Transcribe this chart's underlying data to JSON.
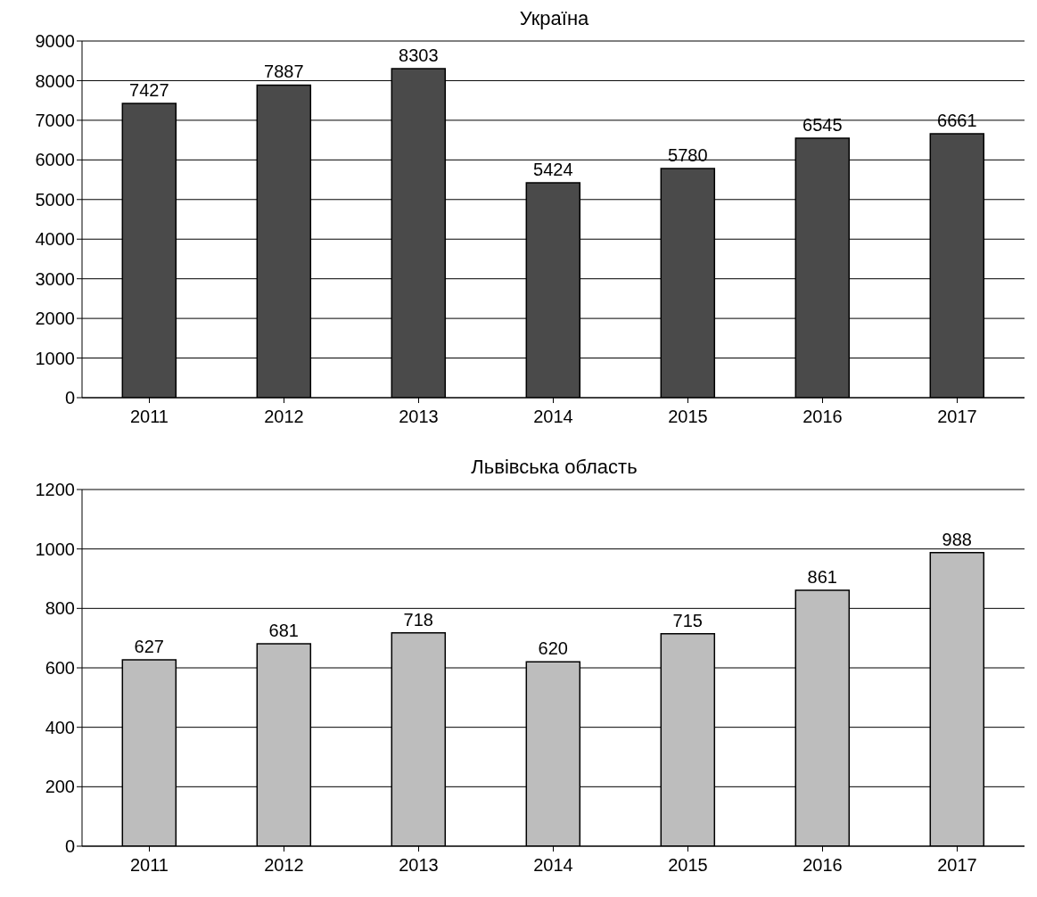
{
  "chart_data": [
    {
      "type": "bar",
      "title": "Україна",
      "categories": [
        "2011",
        "2012",
        "2013",
        "2014",
        "2015",
        "2016",
        "2017"
      ],
      "values": [
        7427,
        7887,
        8303,
        5424,
        5780,
        6545,
        6661
      ],
      "color": "#4a4a4a",
      "ylim": [
        0,
        9000
      ],
      "yticks": [
        0,
        1000,
        2000,
        3000,
        4000,
        5000,
        6000,
        7000,
        8000,
        9000
      ],
      "grid": "y",
      "data_labels": true
    },
    {
      "type": "bar",
      "title": "Львівська область",
      "categories": [
        "2011",
        "2012",
        "2013",
        "2014",
        "2015",
        "2016",
        "2017"
      ],
      "values": [
        627,
        681,
        718,
        620,
        715,
        861,
        988
      ],
      "color": "#bdbdbd",
      "ylim": [
        0,
        1200
      ],
      "yticks": [
        0,
        200,
        400,
        600,
        800,
        1000,
        1200
      ],
      "grid": "y",
      "data_labels": true
    }
  ]
}
